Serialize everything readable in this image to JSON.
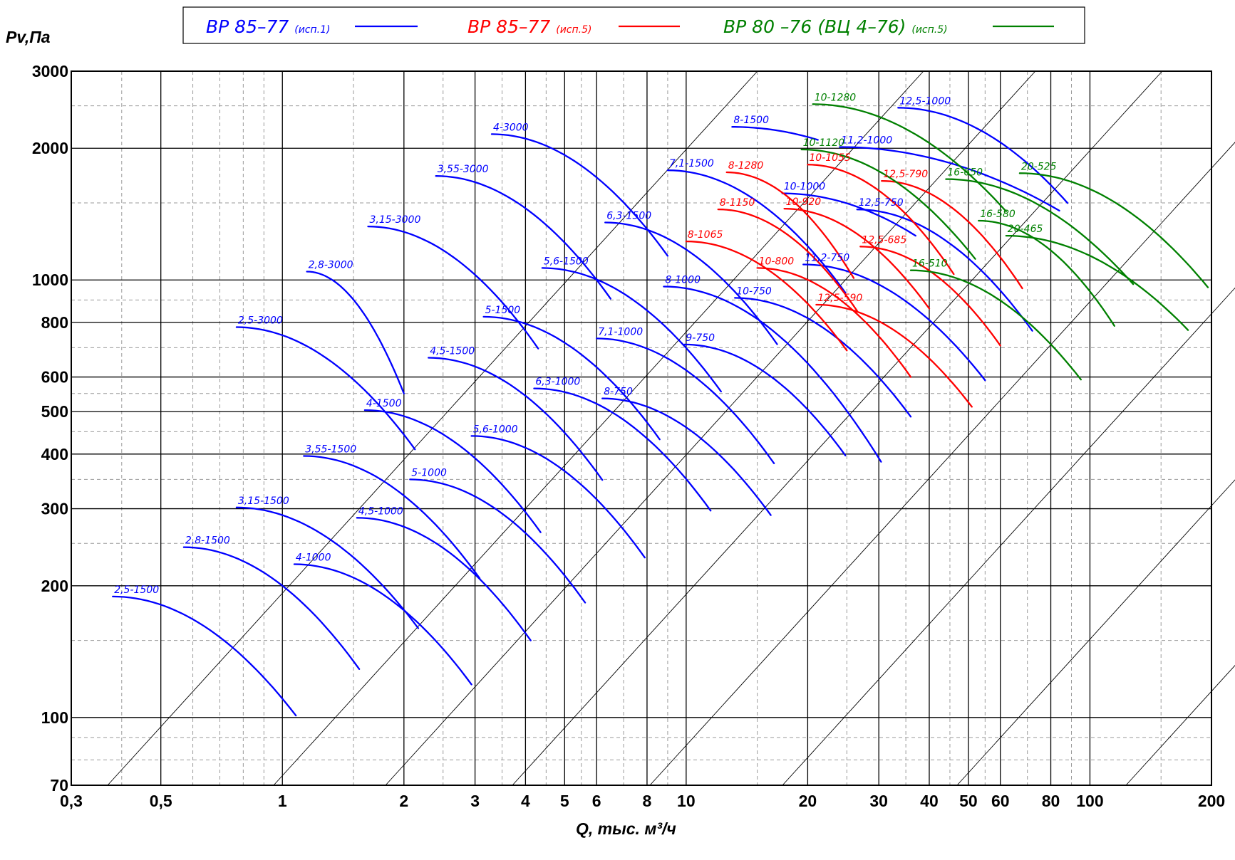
{
  "chart_data": {
    "type": "line",
    "title": "",
    "xlabel": "Q, тыс. м³/ч",
    "ylabel": "Pv,Па",
    "x_scale": "log",
    "y_scale": "log",
    "xlim": [
      0.3,
      200
    ],
    "ylim": [
      70,
      3000
    ],
    "x_ticks": [
      {
        "v": 0.3,
        "t": "0,3"
      },
      {
        "v": 0.5,
        "t": "0,5"
      },
      {
        "v": 1,
        "t": "1"
      },
      {
        "v": 2,
        "t": "2"
      },
      {
        "v": 3,
        "t": "3"
      },
      {
        "v": 4,
        "t": "4"
      },
      {
        "v": 5,
        "t": "5"
      },
      {
        "v": 6,
        "t": "6"
      },
      {
        "v": 8,
        "t": "8"
      },
      {
        "v": 10,
        "t": "10"
      },
      {
        "v": 20,
        "t": "20"
      },
      {
        "v": 30,
        "t": "30"
      },
      {
        "v": 40,
        "t": "40"
      },
      {
        "v": 50,
        "t": "50"
      },
      {
        "v": 60,
        "t": "60"
      },
      {
        "v": 80,
        "t": "80"
      },
      {
        "v": 100,
        "t": "100"
      },
      {
        "v": 200,
        "t": "200"
      }
    ],
    "y_ticks": [
      {
        "v": 70,
        "t": "70"
      },
      {
        "v": 100,
        "t": "100"
      },
      {
        "v": 200,
        "t": "200"
      },
      {
        "v": 300,
        "t": "300"
      },
      {
        "v": 400,
        "t": "400"
      },
      {
        "v": 500,
        "t": "500"
      },
      {
        "v": 600,
        "t": "600"
      },
      {
        "v": 800,
        "t": "800"
      },
      {
        "v": 1000,
        "t": "1000"
      },
      {
        "v": 2000,
        "t": "2000"
      },
      {
        "v": 3000,
        "t": "3000"
      }
    ],
    "grid": true,
    "legend_position": "top",
    "legend": [
      {
        "main": "ВР 85–77",
        "sub": "(исп.1)",
        "color": "#0000ff"
      },
      {
        "main": "ВР 85–77",
        "sub": "(исп.5)",
        "color": "#ff0000"
      },
      {
        "main": "ВР 80 –76 (ВЦ 4–76)",
        "sub": "(исп.5)",
        "color": "#008000"
      }
    ],
    "series": [
      {
        "name": "2,5-1500",
        "color": "#0000ff",
        "q": [
          0.38,
          1.08
        ],
        "p": [
          189,
          101
        ]
      },
      {
        "name": "2,8-1500",
        "color": "#0000ff",
        "q": [
          0.57,
          1.55
        ],
        "p": [
          245,
          129
        ]
      },
      {
        "name": "3,15-1500",
        "color": "#0000ff",
        "q": [
          0.77,
          2.17
        ],
        "p": [
          302,
          160
        ]
      },
      {
        "name": "3,55-1500",
        "color": "#0000ff",
        "q": [
          1.13,
          3.08
        ],
        "p": [
          396,
          208
        ]
      },
      {
        "name": "4-1500",
        "color": "#0000ff",
        "q": [
          1.6,
          4.36
        ],
        "p": [
          504,
          265
        ]
      },
      {
        "name": "4,5-1500",
        "color": "#0000ff",
        "q": [
          2.3,
          6.2
        ],
        "p": [
          664,
          349
        ]
      },
      {
        "name": "5-1500",
        "color": "#0000ff",
        "q": [
          3.15,
          8.6
        ],
        "p": [
          824,
          432
        ]
      },
      {
        "name": "5,6-1500",
        "color": "#0000ff",
        "q": [
          4.4,
          12.2
        ],
        "p": [
          1065,
          556
        ]
      },
      {
        "name": "6,3-1500",
        "color": "#0000ff",
        "q": [
          6.3,
          16.8
        ],
        "p": [
          1353,
          713
        ]
      },
      {
        "name": "7,1-1500",
        "color": "#0000ff",
        "q": [
          9,
          24.8
        ],
        "p": [
          1781,
          935
        ]
      },
      {
        "name": "8-1500",
        "color": "#0000ff",
        "q": [
          13,
          21.2
        ],
        "p": [
          2238,
          2090
        ]
      },
      {
        "name": "2,8-3000",
        "color": "#0000ff",
        "q": [
          1.15,
          2.0
        ],
        "p": [
          1045,
          550
        ]
      },
      {
        "name": "3,15-3000",
        "color": "#0000ff",
        "q": [
          1.63,
          4.3
        ],
        "p": [
          1325,
          697
        ]
      },
      {
        "name": "3,55-3000",
        "color": "#0000ff",
        "q": [
          2.4,
          6.5
        ],
        "p": [
          1728,
          906
        ]
      },
      {
        "name": "4-3000",
        "color": "#0000ff",
        "q": [
          3.3,
          9.0
        ],
        "p": [
          2154,
          1135
        ]
      },
      {
        "name": "2,5-3000",
        "color": "#0000ff",
        "q": [
          0.77,
          2.13
        ],
        "p": [
          780,
          410
        ]
      },
      {
        "name": "4-1000",
        "color": "#0000ff",
        "q": [
          1.07,
          2.94
        ],
        "p": [
          224,
          119
        ]
      },
      {
        "name": "4,5-1000",
        "color": "#0000ff",
        "q": [
          1.53,
          4.12
        ],
        "p": [
          286,
          150
        ]
      },
      {
        "name": "5-1000",
        "color": "#0000ff",
        "q": [
          2.07,
          5.62
        ],
        "p": [
          350,
          183
        ]
      },
      {
        "name": "5,6-1000",
        "color": "#0000ff",
        "q": [
          2.94,
          7.9
        ],
        "p": [
          440,
          232
        ]
      },
      {
        "name": "6,3-1000",
        "color": "#0000ff",
        "q": [
          4.2,
          11.5
        ],
        "p": [
          565,
          297
        ]
      },
      {
        "name": "7,1-1000",
        "color": "#0000ff",
        "q": [
          6.0,
          16.5
        ],
        "p": [
          735,
          381
        ]
      },
      {
        "name": "8-1000",
        "color": "#0000ff",
        "q": [
          8.8,
          30.4
        ],
        "p": [
          966,
          384
        ]
      },
      {
        "name": "10-1000",
        "color": "#0000ff",
        "q": [
          17.3,
          37.0
        ],
        "p": [
          1577,
          1262
        ]
      },
      {
        "name": "11,2-1000",
        "color": "#0000ff",
        "q": [
          24.0,
          84.0
        ],
        "p": [
          2013,
          1440
        ]
      },
      {
        "name": "12,5-1000",
        "color": "#0000ff",
        "q": [
          33.5,
          88.0
        ],
        "p": [
          2475,
          1499
        ]
      },
      {
        "name": "8-750",
        "color": "#0000ff",
        "q": [
          6.2,
          16.2
        ],
        "p": [
          536,
          290
        ]
      },
      {
        "name": "9-750",
        "color": "#0000ff",
        "q": [
          9.9,
          24.8
        ],
        "p": [
          712,
          397
        ]
      },
      {
        "name": "10-750",
        "color": "#0000ff",
        "q": [
          13.2,
          36.0
        ],
        "p": [
          910,
          487
        ]
      },
      {
        "name": "11,2-750",
        "color": "#0000ff",
        "q": [
          19.5,
          55.0
        ],
        "p": [
          1085,
          590
        ]
      },
      {
        "name": "12,5-750",
        "color": "#0000ff",
        "q": [
          26.5,
          72.0
        ],
        "p": [
          1449,
          765
        ]
      },
      {
        "name": "8-1065",
        "color": "#ff0000",
        "q": [
          10.0,
          25.0
        ],
        "p": [
          1225,
          690
        ]
      },
      {
        "name": "8-1150",
        "color": "#ff0000",
        "q": [
          12.0,
          26.5
        ],
        "p": [
          1450,
          850
        ]
      },
      {
        "name": "8-1280",
        "color": "#ff0000",
        "q": [
          12.6,
          26.0
        ],
        "p": [
          1762,
          1010
        ]
      },
      {
        "name": "10-1055",
        "color": "#ff0000",
        "q": [
          20.0,
          46.0
        ],
        "p": [
          1835,
          1031
        ]
      },
      {
        "name": "12,5-790",
        "color": "#ff0000",
        "q": [
          30.5,
          68.0
        ],
        "p": [
          1684,
          957
        ]
      },
      {
        "name": "10-920",
        "color": "#ff0000",
        "q": [
          17.5,
          40.0
        ],
        "p": [
          1455,
          860
        ]
      },
      {
        "name": "12,5-685",
        "color": "#ff0000",
        "q": [
          27.0,
          60.0
        ],
        "p": [
          1192,
          708
        ]
      },
      {
        "name": "10-800",
        "color": "#ff0000",
        "q": [
          15.0,
          36.0
        ],
        "p": [
          1065,
          600
        ]
      },
      {
        "name": "12,5-590",
        "color": "#ff0000",
        "q": [
          21.0,
          51.0
        ],
        "p": [
          878,
          513
        ]
      },
      {
        "name": "10-1280",
        "color": "#008000",
        "q": [
          20.6,
          62.0
        ],
        "p": [
          2522,
          1435
        ]
      },
      {
        "name": "10-1120",
        "color": "#008000",
        "q": [
          19.3,
          52.0
        ],
        "p": [
          1987,
          1117
        ]
      },
      {
        "name": "16-650",
        "color": "#008000",
        "q": [
          44.0,
          128.0
        ],
        "p": [
          1700,
          978
        ]
      },
      {
        "name": "16-580",
        "color": "#008000",
        "q": [
          53.0,
          115.0
        ],
        "p": [
          1366,
          785
        ]
      },
      {
        "name": "16-510",
        "color": "#008000",
        "q": [
          36.0,
          95.0
        ],
        "p": [
          1052,
          592
        ]
      },
      {
        "name": "20-525",
        "color": "#008000",
        "q": [
          67.0,
          196.0
        ],
        "p": [
          1754,
          962
        ]
      },
      {
        "name": "20-465",
        "color": "#008000",
        "q": [
          62.0,
          175.0
        ],
        "p": [
          1262,
          768
        ]
      }
    ]
  }
}
